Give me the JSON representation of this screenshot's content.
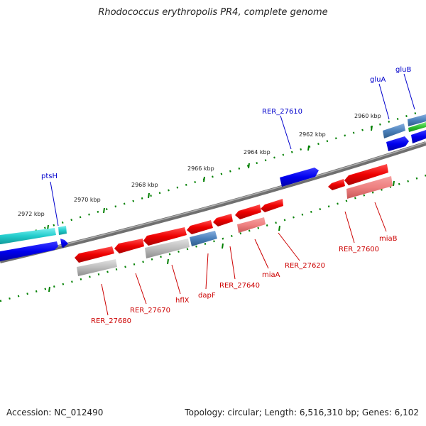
{
  "title": "Rhodococcus erythropolis PR4, complete genome",
  "footer": {
    "accession": "Accession: NC_012490",
    "topology": "Topology: circular; Length: 6,516,310 bp; Genes: 6,102"
  },
  "colors": {
    "forward_label": "#0000cc",
    "reverse_label": "#cc0000",
    "tick": "#008000",
    "backbone": "#808080"
  },
  "kbp_ticks": [
    "2972 kbp",
    "2970 kbp",
    "2968 kbp",
    "2966 kbp",
    "2964 kbp",
    "2962 kbp",
    "2960 kbp"
  ],
  "forward_labels": [
    "ptsH",
    "RER_27610",
    "gluA",
    "gluB"
  ],
  "reverse_labels": [
    "RER_27680",
    "RER_27670",
    "hflX",
    "dapF",
    "RER_27640",
    "miaA",
    "RER_27620",
    "RER_27600",
    "miaB"
  ]
}
